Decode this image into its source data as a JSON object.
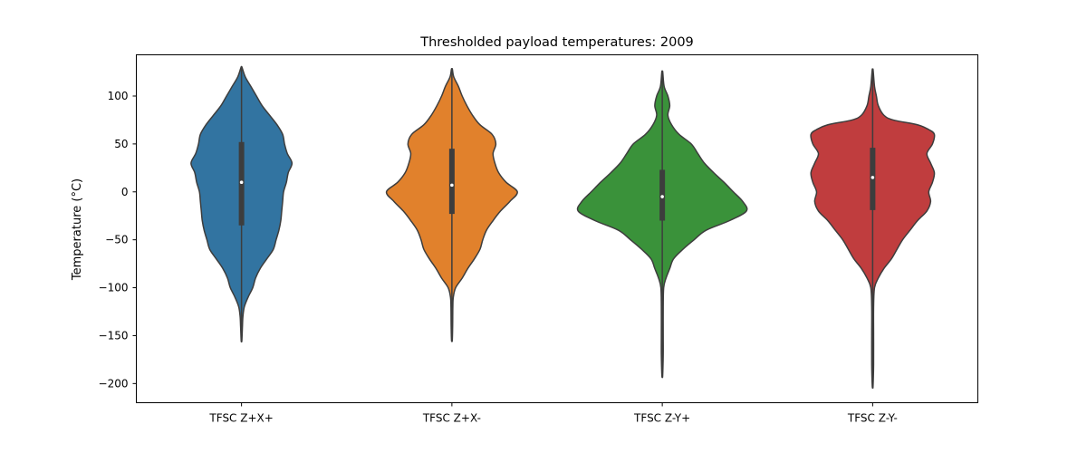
{
  "chart_data": {
    "type": "violin",
    "title": "Thresholded payload temperatures: 2009",
    "xlabel": "",
    "ylabel": "Temperature (°C)",
    "ylim": [
      -220,
      143
    ],
    "yticks": [
      100,
      50,
      0,
      -50,
      -100,
      -150,
      -200
    ],
    "grid": false,
    "categories": [
      "TFSC Z+X+",
      "TFSC Z+X-",
      "TFSC Z-Y+",
      "TFSC Z-Y-"
    ],
    "colors": [
      "#3274a1",
      "#e1812c",
      "#3a923a",
      "#c03d3e"
    ],
    "series": [
      {
        "category": "TFSC Z+X+",
        "min": -156,
        "max": 130,
        "q1": -35,
        "median": 10,
        "q3": 52,
        "density": [
          [
            130,
            0.5
          ],
          [
            120,
            4
          ],
          [
            110,
            10
          ],
          [
            100,
            16
          ],
          [
            90,
            22
          ],
          [
            80,
            30
          ],
          [
            70,
            38
          ],
          [
            60,
            44
          ],
          [
            50,
            46
          ],
          [
            40,
            49
          ],
          [
            30,
            54
          ],
          [
            20,
            50
          ],
          [
            10,
            48
          ],
          [
            0,
            45
          ],
          [
            -10,
            44
          ],
          [
            -20,
            43
          ],
          [
            -30,
            42
          ],
          [
            -40,
            40
          ],
          [
            -50,
            37
          ],
          [
            -60,
            34
          ],
          [
            -70,
            27
          ],
          [
            -80,
            20
          ],
          [
            -90,
            15
          ],
          [
            -100,
            12
          ],
          [
            -110,
            7
          ],
          [
            -120,
            3
          ],
          [
            -130,
            1.5
          ],
          [
            -140,
            1
          ],
          [
            -150,
            0.6
          ],
          [
            -156,
            0.3
          ]
        ]
      },
      {
        "category": "TFSC Z+X-",
        "min": -155,
        "max": 128,
        "q1": -23,
        "median": 7,
        "q3": 45,
        "density": [
          [
            128,
            0.5
          ],
          [
            120,
            2
          ],
          [
            110,
            7
          ],
          [
            100,
            11
          ],
          [
            90,
            16
          ],
          [
            80,
            22
          ],
          [
            70,
            30
          ],
          [
            60,
            43
          ],
          [
            50,
            47
          ],
          [
            40,
            44
          ],
          [
            30,
            46
          ],
          [
            20,
            50
          ],
          [
            10,
            58
          ],
          [
            0,
            70
          ],
          [
            -10,
            62
          ],
          [
            -20,
            52
          ],
          [
            -30,
            44
          ],
          [
            -40,
            37
          ],
          [
            -50,
            33
          ],
          [
            -60,
            30
          ],
          [
            -70,
            24
          ],
          [
            -80,
            17
          ],
          [
            -90,
            11
          ],
          [
            -100,
            4
          ],
          [
            -110,
            1.5
          ],
          [
            -120,
            1
          ],
          [
            -140,
            0.8
          ],
          [
            -155,
            0.4
          ]
        ]
      },
      {
        "category": "TFSC Z-Y+",
        "min": -192,
        "max": 125,
        "q1": -30,
        "median": -5,
        "q3": 23,
        "density": [
          [
            125,
            0.5
          ],
          [
            110,
            2
          ],
          [
            100,
            6
          ],
          [
            90,
            8
          ],
          [
            80,
            6
          ],
          [
            70,
            10
          ],
          [
            60,
            18
          ],
          [
            50,
            31
          ],
          [
            40,
            38
          ],
          [
            30,
            45
          ],
          [
            20,
            55
          ],
          [
            10,
            66
          ],
          [
            0,
            76
          ],
          [
            -10,
            86
          ],
          [
            -20,
            90
          ],
          [
            -30,
            72
          ],
          [
            -40,
            47
          ],
          [
            -50,
            34
          ],
          [
            -60,
            22
          ],
          [
            -70,
            12
          ],
          [
            -80,
            8
          ],
          [
            -90,
            4
          ],
          [
            -100,
            1.5
          ],
          [
            -120,
            1
          ],
          [
            -150,
            1
          ],
          [
            -170,
            1
          ],
          [
            -192,
            0.4
          ]
        ]
      },
      {
        "category": "TFSC Z-Y-",
        "min": -203,
        "max": 127,
        "q1": -19,
        "median": 15,
        "q3": 46,
        "density": [
          [
            127,
            0.5
          ],
          [
            110,
            2
          ],
          [
            100,
            4
          ],
          [
            90,
            6
          ],
          [
            80,
            12
          ],
          [
            75,
            22
          ],
          [
            70,
            48
          ],
          [
            65,
            60
          ],
          [
            60,
            66
          ],
          [
            50,
            64
          ],
          [
            40,
            58
          ],
          [
            30,
            62
          ],
          [
            20,
            66
          ],
          [
            10,
            64
          ],
          [
            0,
            60
          ],
          [
            -10,
            62
          ],
          [
            -20,
            58
          ],
          [
            -30,
            48
          ],
          [
            -40,
            40
          ],
          [
            -50,
            32
          ],
          [
            -60,
            26
          ],
          [
            -70,
            20
          ],
          [
            -80,
            12
          ],
          [
            -90,
            6
          ],
          [
            -100,
            2
          ],
          [
            -120,
            1
          ],
          [
            -150,
            1
          ],
          [
            -180,
            1
          ],
          [
            -203,
            0.4
          ]
        ]
      }
    ]
  }
}
